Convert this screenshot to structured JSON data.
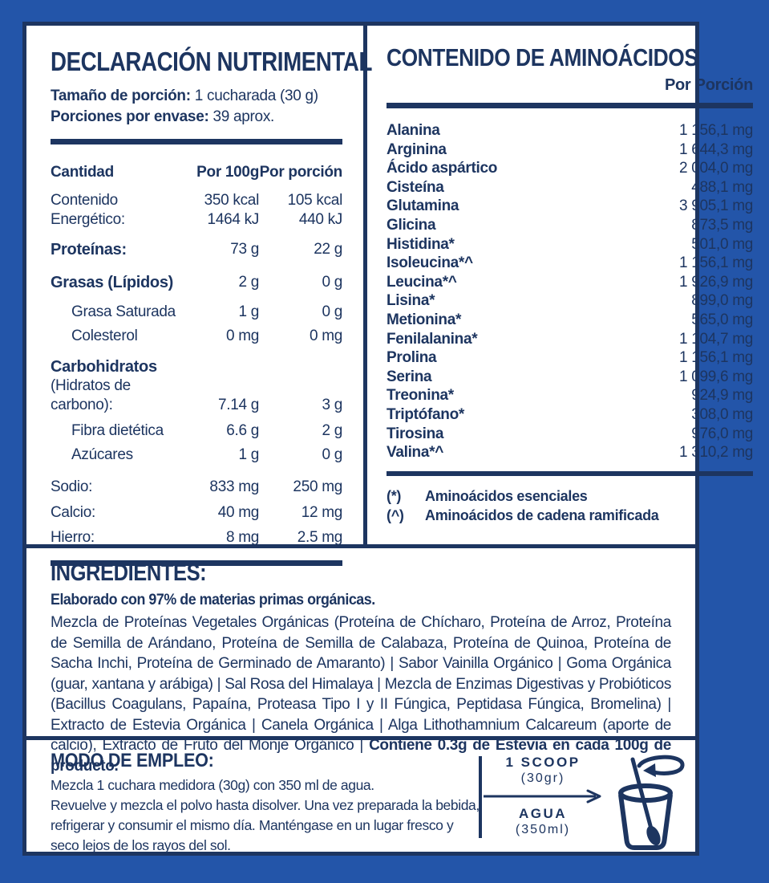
{
  "colors": {
    "frame_blue": "#2355a9",
    "navy": "#1d3560",
    "white": "#ffffff"
  },
  "nutrition": {
    "title": "DECLARACIÓN NUTRIMENTAL",
    "serving_label": "Tamaño de porción:",
    "serving_value": " 1 cucharada (30 g)",
    "servings_label": "Porciones por envase:",
    "servings_value": " 39 aprox.",
    "col_amount": "Cantidad",
    "col_per100": "Por 100g",
    "col_portion": "Por porción",
    "rows": [
      {
        "label": "Contenido Energético:",
        "type": "plain",
        "v1": [
          "350 kcal",
          "1464 kJ"
        ],
        "v2": [
          "105 kcal",
          "440 kJ"
        ],
        "gap": 13
      },
      {
        "label": "Proteínas:",
        "type": "bold",
        "v1": [
          "73 g"
        ],
        "v2": [
          "22 g"
        ],
        "gap": 17
      },
      {
        "label": "Grasas (Lípidos)",
        "type": "bold",
        "v1": [
          "2 g"
        ],
        "v2": [
          "0 g"
        ],
        "gap": 13
      },
      {
        "label": "Grasa Saturada",
        "type": "indent",
        "v1": [
          "1 g"
        ],
        "v2": [
          "0 g"
        ],
        "gap": 6
      },
      {
        "label": "Colesterol",
        "type": "indent",
        "v1": [
          "0 mg"
        ],
        "v2": [
          "0 mg"
        ],
        "gap": 14
      },
      {
        "label": "Carbohidratos",
        "label2": "(Hidratos de carbono):",
        "type": "bold",
        "v1": [
          "7.14 g"
        ],
        "v2": [
          "3 g"
        ],
        "gap": 8
      },
      {
        "label": "Fibra dietética",
        "type": "indent",
        "v1": [
          "6.6 g"
        ],
        "v2": [
          "2 g"
        ],
        "gap": 6
      },
      {
        "label": "Azúcares",
        "type": "indent",
        "v1": [
          "1 g"
        ],
        "v2": [
          "0 g"
        ],
        "gap": 16
      },
      {
        "label": "Sodio:",
        "type": "plain",
        "v1": [
          "833 mg"
        ],
        "v2": [
          "250 mg"
        ],
        "gap": 8
      },
      {
        "label": "Calcio:",
        "type": "plain",
        "v1": [
          "40 mg"
        ],
        "v2": [
          "12 mg"
        ],
        "gap": 7
      },
      {
        "label": "Hierro:",
        "type": "plain",
        "v1": [
          "8 mg"
        ],
        "v2": [
          "2.5 mg"
        ],
        "gap": 0
      }
    ]
  },
  "amino": {
    "title": "CONTENIDO DE AMINOÁCIDOS",
    "subtitle": "Por Porción",
    "items": [
      {
        "name": "Alanina",
        "value": "1 156,1 mg"
      },
      {
        "name": "Arginina",
        "value": "1 644,3 mg"
      },
      {
        "name": "Ácido aspártico",
        "value": "2 004,0 mg"
      },
      {
        "name": "Cisteína",
        "value": "488,1 mg"
      },
      {
        "name": "Glutamina",
        "value": "3 905,1 mg"
      },
      {
        "name": "Glicina",
        "value": "873,5 mg"
      },
      {
        "name": "Histidina*",
        "value": "501,0 mg"
      },
      {
        "name": "Isoleucina*^",
        "value": "1 156,1 mg"
      },
      {
        "name": "Leucina*^",
        "value": "1 926,9 mg"
      },
      {
        "name": "Lisina*",
        "value": "899,0 mg"
      },
      {
        "name": "Metionina*",
        "value": "565,0 mg"
      },
      {
        "name": "Fenilalanina*",
        "value": "1 104,7 mg"
      },
      {
        "name": "Prolina",
        "value": "1 156,1 mg"
      },
      {
        "name": "Serina",
        "value": "1 099,6 mg"
      },
      {
        "name": "Treonina*",
        "value": "924,9 mg"
      },
      {
        "name": "Triptófano*",
        "value": "308,0 mg"
      },
      {
        "name": "Tirosina",
        "value": "976,0 mg"
      },
      {
        "name": "Valina*^",
        "value": "1 310,2 mg"
      }
    ],
    "footnotes": [
      {
        "mark": "(*)",
        "text": "Aminoácidos esenciales"
      },
      {
        "mark": "(^)",
        "text": "Aminoácidos de cadena ramificada"
      }
    ]
  },
  "ingredients": {
    "title": "INGREDIENTES:",
    "bold_line": "Elaborado con 97% de materias primas orgánicas.",
    "body": "Mezcla de Proteínas Vegetales Orgánicas (Proteína de Chícharo, Proteína de Arroz, Proteína de Semilla de Arándano, Proteína de Semilla de Calabaza, Proteína de Quinoa, Proteína de Sacha Inchi, Proteína de Germinado de Amaranto) | Sabor Vainilla Orgánico | Goma Orgánica (guar, xantana y arábiga) | Sal Rosa del Himalaya | Mezcla de Enzimas Digestivas y Probióticos (Bacillus Coagulans, Papaína, Proteasa Tipo I y II Fúngica, Peptidasa Fúngica, Bromelina) | Extracto de Estevia Orgánica | Canela Orgánica | Alga Lithothamnium Calcareum (aporte de calcio), Extracto de Fruto del Monje Orgánico | ",
    "body_bold": "Contiene 0.3g de Estevia en cada 100g de producto."
  },
  "usage": {
    "title": "MODO DE EMPLEO:",
    "lines": [
      "Mezcla 1 cuchara medidora (30g) con 350 ml de agua.",
      "Revuelve y mezcla el polvo hasta disolver. Una vez preparada la bebida,",
      "refrigerar y consumir el mismo día. Manténgase en un lugar fresco y",
      "seco lejos de los rayos del sol."
    ],
    "scoop_label": "1 SCOOP",
    "scoop_amount": "(30gr)",
    "water_label": "AGUA",
    "water_amount": "(350ml)"
  }
}
